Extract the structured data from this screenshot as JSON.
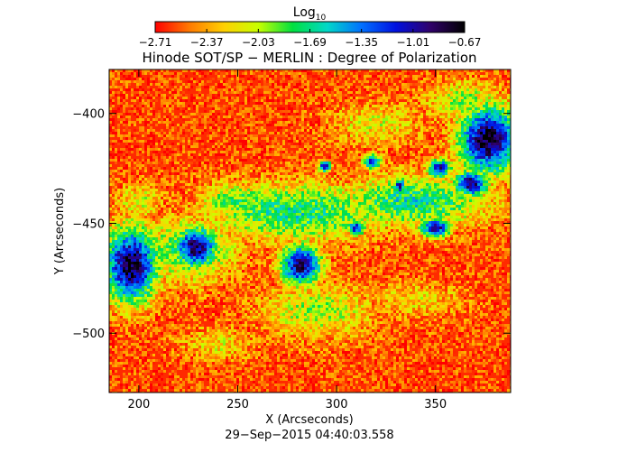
{
  "chart_data": {
    "type": "heatmap",
    "title": "Hinode SOT/SP − MERLIN : Degree of Polarization",
    "xlabel": "X (Arcseconds)",
    "ylabel": "Y (Arcseconds)",
    "timestamp": "29−Sep−2015 04:40:03.558",
    "xlim": [
      185,
      388
    ],
    "ylim": [
      -527,
      -380
    ],
    "x_ticks": [
      {
        "value": 200,
        "label": "200"
      },
      {
        "value": 250,
        "label": "250"
      },
      {
        "value": 300,
        "label": "300"
      },
      {
        "value": 350,
        "label": "350"
      }
    ],
    "y_ticks": [
      {
        "value": -400,
        "label": "−400"
      },
      {
        "value": -450,
        "label": "−450"
      },
      {
        "value": -500,
        "label": "−500"
      }
    ],
    "colorbar": {
      "label_base": "Log",
      "label_sub": "10",
      "range": [
        -2.71,
        -0.67
      ],
      "ticks": [
        {
          "value": -2.71,
          "label": "−2.71"
        },
        {
          "value": -2.37,
          "label": "−2.37"
        },
        {
          "value": -2.03,
          "label": "−2.03"
        },
        {
          "value": -1.69,
          "label": "−1.69"
        },
        {
          "value": -1.35,
          "label": "−1.35"
        },
        {
          "value": -1.01,
          "label": "−1.01"
        },
        {
          "value": -0.67,
          "label": "−0.67"
        }
      ],
      "colormap": [
        "#ff0000",
        "#ff7a00",
        "#ffd000",
        "#c8ff00",
        "#00e040",
        "#00d8c8",
        "#0070ff",
        "#0010e0",
        "#30006a",
        "#000000"
      ]
    },
    "background_level": -2.6,
    "features": [
      {
        "name": "sunspot",
        "x": 196,
        "y": -469,
        "rx": 16,
        "ry": 20,
        "level": -0.75
      },
      {
        "name": "sunspot",
        "x": 229,
        "y": -461,
        "rx": 13,
        "ry": 11,
        "level": -0.85
      },
      {
        "name": "sunspot",
        "x": 282,
        "y": -469,
        "rx": 12,
        "ry": 11,
        "level": -0.85
      },
      {
        "name": "pore",
        "x": 318,
        "y": -422,
        "rx": 5,
        "ry": 4,
        "level": -1.0
      },
      {
        "name": "pore",
        "x": 294,
        "y": -424,
        "rx": 4,
        "ry": 3,
        "level": -1.05
      },
      {
        "name": "pore",
        "x": 332,
        "y": -433,
        "rx": 4,
        "ry": 4,
        "level": -1.05
      },
      {
        "name": "pore",
        "x": 350,
        "y": -452,
        "rx": 9,
        "ry": 5,
        "level": -0.9
      },
      {
        "name": "pore",
        "x": 352,
        "y": -425,
        "rx": 7,
        "ry": 5,
        "level": -1.0
      },
      {
        "name": "pore",
        "x": 310,
        "y": -452,
        "rx": 5,
        "ry": 4,
        "level": -1.05
      },
      {
        "name": "sunspot",
        "x": 377,
        "y": -412,
        "rx": 18,
        "ry": 18,
        "level": -0.72
      },
      {
        "name": "sunspot",
        "x": 368,
        "y": -432,
        "rx": 10,
        "ry": 7,
        "level": -0.85
      },
      {
        "name": "plage",
        "x": 280,
        "y": -445,
        "rx": 55,
        "ry": 16,
        "level": -1.7
      },
      {
        "name": "plage",
        "x": 340,
        "y": -440,
        "rx": 45,
        "ry": 14,
        "level": -1.65
      },
      {
        "name": "plage",
        "x": 225,
        "y": -462,
        "rx": 30,
        "ry": 18,
        "level": -1.8
      },
      {
        "name": "plage",
        "x": 290,
        "y": -490,
        "rx": 35,
        "ry": 15,
        "level": -2.0
      },
      {
        "name": "plage",
        "x": 250,
        "y": -440,
        "rx": 25,
        "ry": 10,
        "level": -1.85
      },
      {
        "name": "plage",
        "x": 365,
        "y": -395,
        "rx": 25,
        "ry": 12,
        "level": -2.0
      },
      {
        "name": "plage",
        "x": 200,
        "y": -440,
        "rx": 15,
        "ry": 10,
        "level": -2.1
      },
      {
        "name": "plage",
        "x": 320,
        "y": -405,
        "rx": 30,
        "ry": 12,
        "level": -2.15
      },
      {
        "name": "plage",
        "x": 240,
        "y": -505,
        "rx": 25,
        "ry": 10,
        "level": -2.2
      },
      {
        "name": "plage",
        "x": 340,
        "y": -485,
        "rx": 30,
        "ry": 10,
        "level": -2.2
      }
    ]
  }
}
